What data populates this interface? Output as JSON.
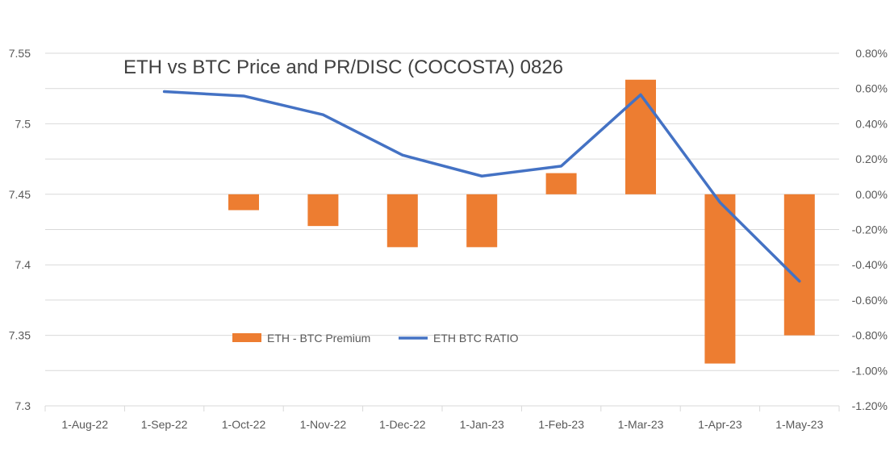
{
  "chart_data": {
    "type": "bar",
    "title": "ETH vs BTC Price and PR/DISC (COCOSTA) 0826",
    "categories": [
      "1-Aug-22",
      "1-Sep-22",
      "1-Oct-22",
      "1-Nov-22",
      "1-Dec-22",
      "1-Jan-23",
      "1-Feb-23",
      "1-Mar-23",
      "1-Apr-23",
      "1-May-23"
    ],
    "left_axis": {
      "min": 7.3,
      "max": 7.55,
      "step": 0.05,
      "tick_labels": [
        "7.3",
        "7.35",
        "7.4",
        "7.45",
        "7.5",
        "7.55"
      ]
    },
    "right_axis": {
      "min": -1.2,
      "max": 0.8,
      "step": 0.2,
      "unit": "%",
      "tick_labels": [
        "-1.20%",
        "-1.00%",
        "-0.80%",
        "-0.60%",
        "-0.40%",
        "-0.20%",
        "0.00%",
        "0.20%",
        "0.40%",
        "0.60%",
        "0.80%"
      ]
    },
    "grid": true,
    "legend_position": "inside-bottom-left",
    "series": [
      {
        "name": "ETH - BTC Premium",
        "type": "bar",
        "axis": "right",
        "color": "#ED7D31",
        "values": [
          null,
          null,
          -0.09,
          -0.18,
          -0.3,
          -0.3,
          0.12,
          0.65,
          -0.96,
          -0.8
        ]
      },
      {
        "name": "ETH BTC RATIO",
        "type": "line",
        "axis": "left",
        "color": "#4472C4",
        "values": [
          null,
          7.5228,
          7.5197,
          7.5064,
          7.4778,
          7.4629,
          7.47,
          7.5206,
          7.4442,
          7.3884
        ]
      }
    ]
  }
}
